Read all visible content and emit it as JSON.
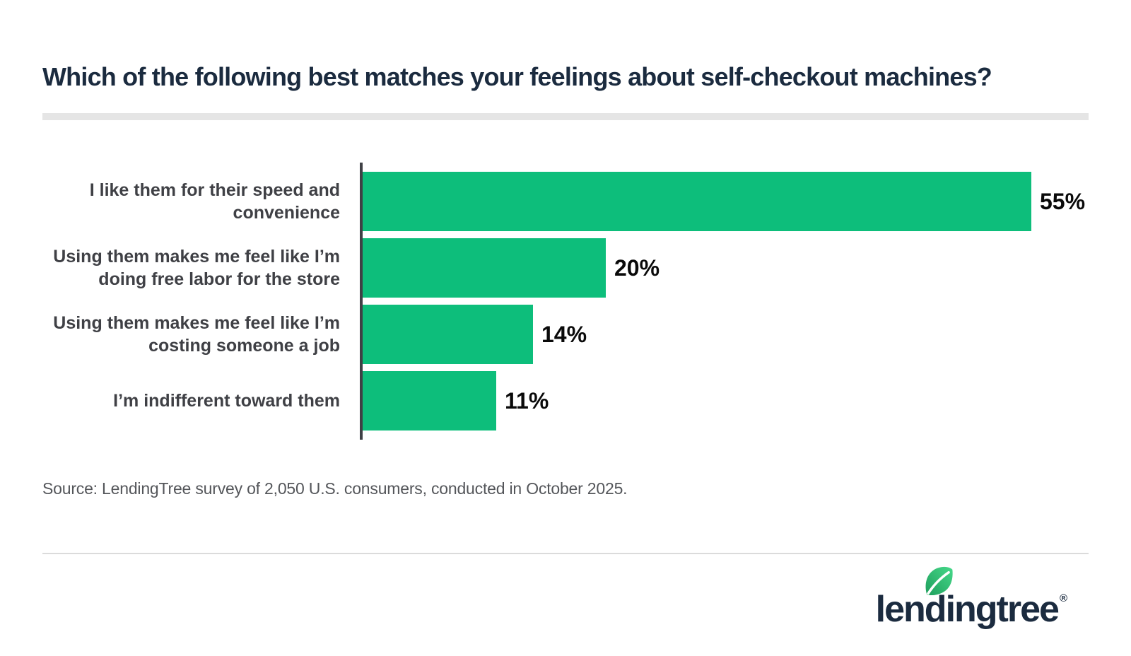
{
  "header": {
    "title": "Which of the following best matches your feelings about self-checkout machines?",
    "title_color": "#1B2B3F",
    "rule_color": "#E5E5E5"
  },
  "chart_data": {
    "type": "bar",
    "orientation": "horizontal",
    "categories": [
      "I like them for their speed and convenience",
      "Using them makes me feel like I’m doing free labor for the store",
      "Using them makes me feel like I’m costing someone a job",
      "I’m indifferent toward them"
    ],
    "values": [
      55,
      20,
      14,
      11
    ],
    "value_labels": [
      "55%",
      "20%",
      "14%",
      "11%"
    ],
    "xlim": [
      0,
      57
    ],
    "grid": false,
    "legend": false,
    "data_labels": "end-of-bar",
    "bar_color": "#0DBE7B",
    "axis_color": "#3F4045",
    "category_label_color": "#3F4045",
    "value_label_color": "#0A0A0A"
  },
  "footer": {
    "source": "Source: LendingTree survey of 2,050 U.S. consumers, conducted in October 2025.",
    "source_color": "#54565A",
    "rule_color": "#DBDBDB"
  },
  "logo": {
    "wordmark": "lendingtree",
    "registered": "®",
    "wordmark_color": "#1B2B3F",
    "leaf_icon": "leaf-icon",
    "leaf_gradient_start": "#1E9E5C",
    "leaf_gradient_end": "#47D98A"
  }
}
